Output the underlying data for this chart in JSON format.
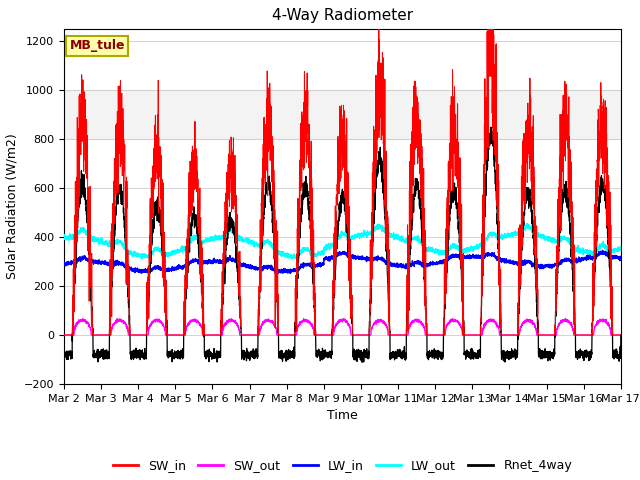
{
  "title": "4-Way Radiometer",
  "xlabel": "Time",
  "ylabel": "Solar Radiation (W/m2)",
  "ylim": [
    -200,
    1250
  ],
  "yticks": [
    -200,
    0,
    200,
    400,
    600,
    800,
    1000,
    1200
  ],
  "station_label": "MB_tule",
  "legend": [
    "SW_in",
    "SW_out",
    "LW_in",
    "LW_out",
    "Rnet_4way"
  ],
  "colors": {
    "SW_in": "#ff0000",
    "SW_out": "#ff00ff",
    "LW_in": "#0000ff",
    "LW_out": "#00ffff",
    "Rnet_4way": "#000000"
  },
  "gray_band": [
    800,
    1000
  ],
  "gray_band_alpha": 0.25,
  "xtick_labels": [
    "Mar 2",
    "Mar 3",
    "Mar 4",
    "Mar 5",
    "Mar 6",
    "Mar 7",
    "Mar 8",
    "Mar 9",
    "Mar 10",
    "Mar 11",
    "Mar 12",
    "Mar 13",
    "Mar 14",
    "Mar 15",
    "Mar 16",
    "Mar 17"
  ],
  "title_fontsize": 11,
  "label_fontsize": 9,
  "tick_fontsize": 8
}
